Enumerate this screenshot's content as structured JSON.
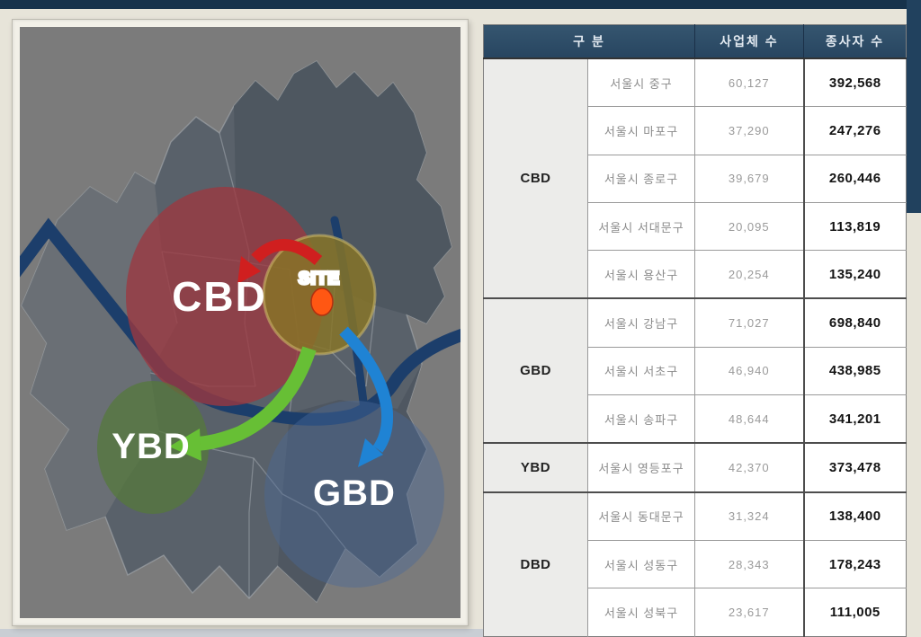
{
  "map": {
    "labels": {
      "cbd": "CBD",
      "ybd": "YBD",
      "gbd": "GBD",
      "site": "SITE"
    },
    "colors": {
      "top_bar": "#16324b",
      "map_bg": "#7b7b7b",
      "district_base": "#59616a",
      "district_light": "#6c7177",
      "district_dark": "#4d565f",
      "river": "#1c3e6b",
      "cbd_zone": "#9c3840",
      "ybd_zone": "#55783a",
      "gbd_zone": "#4a6a99",
      "site_zone": "#877526",
      "site_dot": "#ff5713",
      "arrow_red": "#d01f1f",
      "arrow_green": "#67bf35",
      "arrow_blue": "#1f83d4",
      "site_text": "#d42b2b"
    }
  },
  "table": {
    "headers": {
      "category": "구 분",
      "businesses": "사업체 수",
      "workers": "종사자 수"
    },
    "groups": [
      {
        "name": "CBD",
        "rows": [
          {
            "district": "서울시 중구",
            "businesses": "60,127",
            "workers": "392,568"
          },
          {
            "district": "서울시 마포구",
            "businesses": "37,290",
            "workers": "247,276"
          },
          {
            "district": "서울시 종로구",
            "businesses": "39,679",
            "workers": "260,446"
          },
          {
            "district": "서울시 서대문구",
            "businesses": "20,095",
            "workers": "113,819"
          },
          {
            "district": "서울시 용산구",
            "businesses": "20,254",
            "workers": "135,240"
          }
        ]
      },
      {
        "name": "GBD",
        "rows": [
          {
            "district": "서울시 강남구",
            "businesses": "71,027",
            "workers": "698,840"
          },
          {
            "district": "서울시 서초구",
            "businesses": "46,940",
            "workers": "438,985"
          },
          {
            "district": "서울시 송파구",
            "businesses": "48,644",
            "workers": "341,201"
          }
        ]
      },
      {
        "name": "YBD",
        "rows": [
          {
            "district": "서울시 영등포구",
            "businesses": "42,370",
            "workers": "373,478"
          }
        ]
      },
      {
        "name": "DBD",
        "rows": [
          {
            "district": "서울시 동대문구",
            "businesses": "31,324",
            "workers": "138,400"
          },
          {
            "district": "서울시 성동구",
            "businesses": "28,343",
            "workers": "178,243"
          },
          {
            "district": "서울시 성북구",
            "businesses": "23,617",
            "workers": "111,005"
          }
        ]
      }
    ]
  }
}
